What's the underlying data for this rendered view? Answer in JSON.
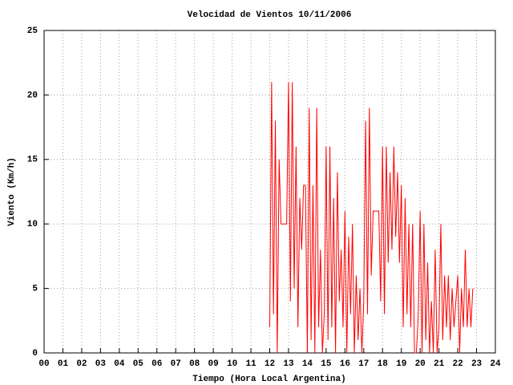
{
  "chart_data": {
    "type": "line",
    "title": "Velocidad de Vientos 10/11/2006",
    "xlabel": "Tiempo (Hora Local Argentina)",
    "ylabel": "Viento (Km/h)",
    "xlim": [
      0,
      24
    ],
    "ylim": [
      0,
      25
    ],
    "xticks": [
      {
        "value": 0,
        "label": "00"
      },
      {
        "value": 1,
        "label": "01"
      },
      {
        "value": 2,
        "label": "02"
      },
      {
        "value": 3,
        "label": "03"
      },
      {
        "value": 4,
        "label": "04"
      },
      {
        "value": 5,
        "label": "05"
      },
      {
        "value": 6,
        "label": "06"
      },
      {
        "value": 7,
        "label": "07"
      },
      {
        "value": 8,
        "label": "08"
      },
      {
        "value": 9,
        "label": "09"
      },
      10,
      11,
      12,
      13,
      14,
      15,
      16,
      17,
      18,
      19,
      20,
      21,
      22,
      23,
      24
    ],
    "yticks": [
      0,
      5,
      10,
      15,
      20,
      25
    ],
    "grid": true,
    "x": [
      12.0,
      12.1,
      12.2,
      12.3,
      12.4,
      12.5,
      12.6,
      12.7,
      12.8,
      12.9,
      13.0,
      13.1,
      13.2,
      13.3,
      13.4,
      13.5,
      13.6,
      13.7,
      13.8,
      13.9,
      14.0,
      14.1,
      14.2,
      14.3,
      14.4,
      14.5,
      14.6,
      14.7,
      14.8,
      14.9,
      15.0,
      15.1,
      15.2,
      15.3,
      15.4,
      15.5,
      15.6,
      15.7,
      15.8,
      15.9,
      16.0,
      16.1,
      16.2,
      16.3,
      16.4,
      16.5,
      16.6,
      16.7,
      16.8,
      16.9,
      17.0,
      17.1,
      17.2,
      17.3,
      17.4,
      17.5,
      17.6,
      17.7,
      17.8,
      17.9,
      18.0,
      18.1,
      18.2,
      18.3,
      18.4,
      18.5,
      18.6,
      18.7,
      18.8,
      18.9,
      19.0,
      19.1,
      19.2,
      19.3,
      19.4,
      19.5,
      19.6,
      19.7,
      19.8,
      19.9,
      20.0,
      20.1,
      20.2,
      20.3,
      20.4,
      20.5,
      20.6,
      20.7,
      20.8,
      20.9,
      21.0,
      21.1,
      21.2,
      21.3,
      21.4,
      21.5,
      21.6,
      21.7,
      21.8,
      21.9,
      22.0,
      22.1,
      22.2,
      22.3,
      22.4,
      22.5,
      22.6,
      22.7,
      22.8
    ],
    "series": [
      {
        "color": "#ff0000",
        "values": [
          2,
          21,
          3,
          18,
          0,
          15,
          10,
          10,
          10,
          10,
          21,
          4,
          21,
          5,
          16,
          2,
          12,
          8,
          13,
          13,
          0,
          19,
          1,
          13,
          0,
          19,
          2,
          8,
          0,
          3,
          16,
          1,
          16,
          2,
          12,
          0,
          14,
          4,
          8,
          2,
          11,
          0,
          9,
          3,
          10,
          0,
          6,
          1,
          5,
          0,
          4,
          18,
          3,
          19,
          6,
          11,
          11,
          11,
          11,
          4,
          16,
          3,
          16,
          7,
          14,
          8,
          16,
          9,
          14,
          7,
          13,
          2,
          12,
          3,
          10,
          2,
          10,
          0,
          0,
          3,
          11,
          0,
          10,
          1,
          7,
          0,
          4,
          0,
          8,
          0,
          2,
          10,
          1,
          6,
          2,
          6,
          1,
          5,
          2,
          4,
          6,
          0,
          5,
          2,
          8,
          2,
          5,
          2,
          5
        ]
      }
    ]
  }
}
